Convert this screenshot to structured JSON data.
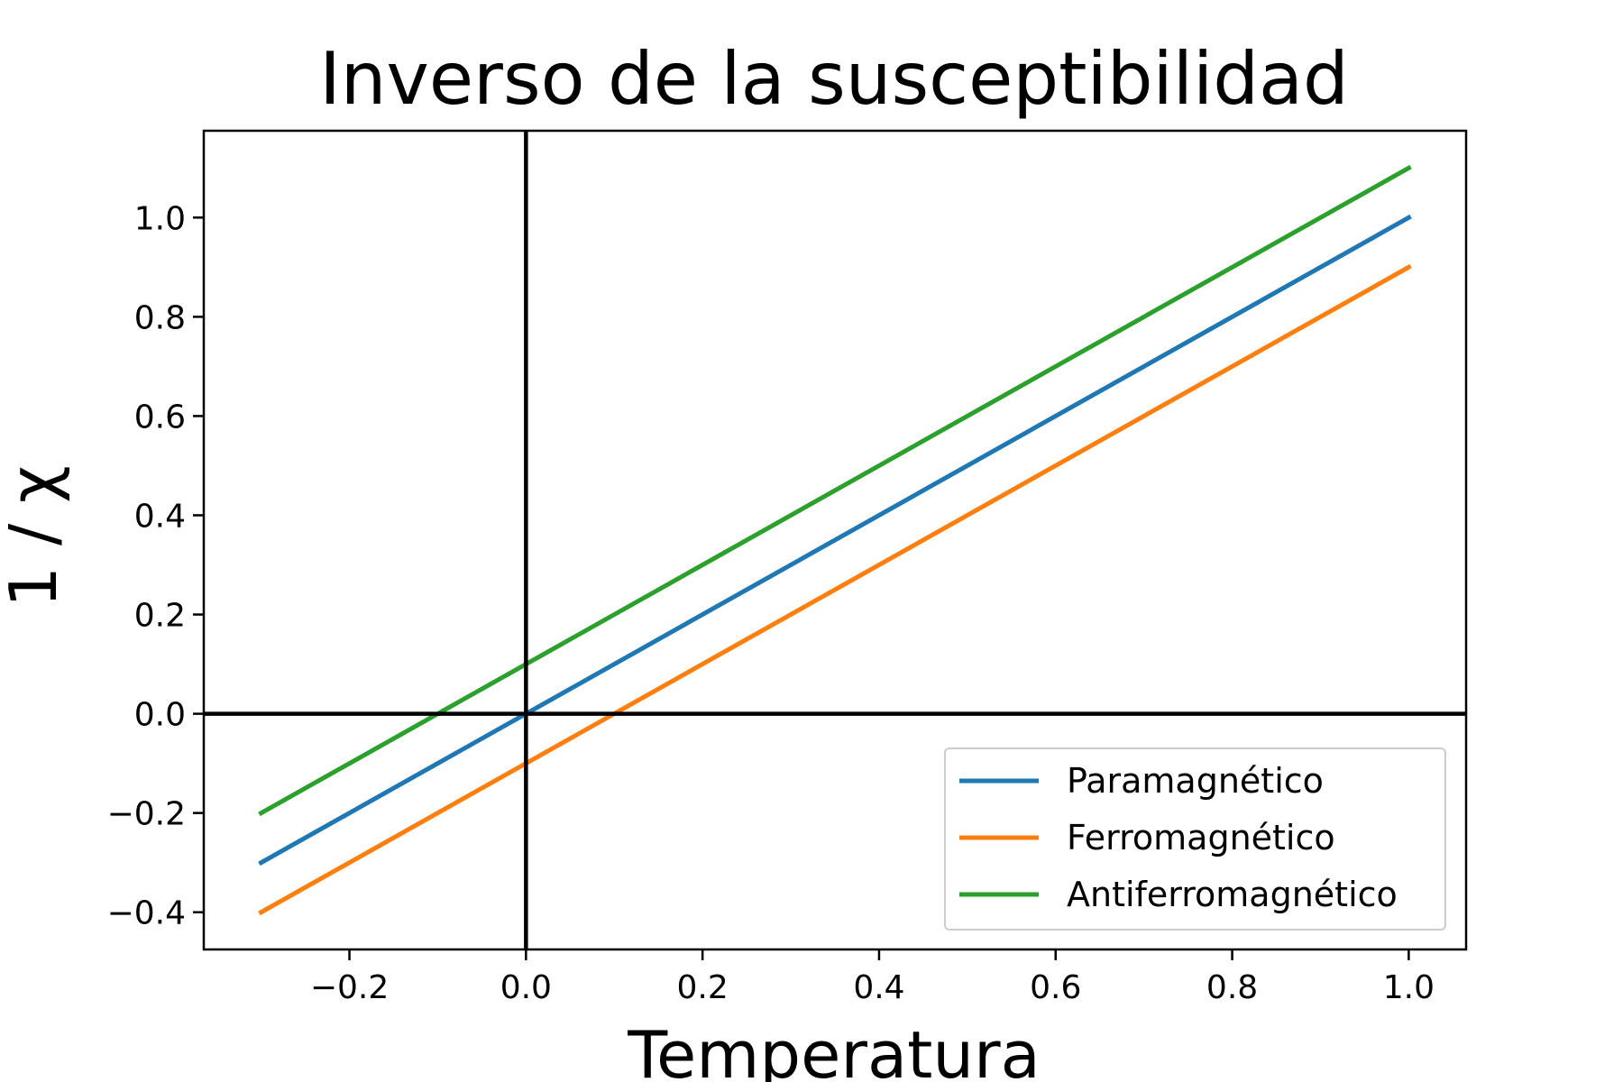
{
  "chart_data": {
    "type": "line",
    "title": "Inverso de la susceptibilidad",
    "xlabel": "Temperatura",
    "ylabel": "1 / χ",
    "xlim": [
      -0.365,
      1.065
    ],
    "ylim": [
      -0.475,
      1.175
    ],
    "xticks": [
      -0.2,
      0.0,
      0.2,
      0.4,
      0.6,
      0.8,
      1.0
    ],
    "yticks": [
      -0.4,
      -0.2,
      0.0,
      0.2,
      0.4,
      0.6,
      0.8,
      1.0
    ],
    "grid": false,
    "legend_position": "lower-right",
    "reference_lines": [
      {
        "orientation": "vertical",
        "value": 0.0,
        "color": "#000000"
      },
      {
        "orientation": "horizontal",
        "value": 0.0,
        "color": "#000000"
      }
    ],
    "series": [
      {
        "name": "Paramagnético",
        "color": "#1f77b4",
        "x": [
          -0.3,
          1.0
        ],
        "y": [
          -0.3,
          1.0
        ]
      },
      {
        "name": "Ferromagnético",
        "color": "#ff7f0e",
        "x": [
          -0.3,
          1.0
        ],
        "y": [
          -0.4,
          0.9
        ]
      },
      {
        "name": "Antiferromagnético",
        "color": "#2ca02c",
        "x": [
          -0.3,
          1.0
        ],
        "y": [
          -0.2,
          1.1
        ]
      }
    ]
  }
}
